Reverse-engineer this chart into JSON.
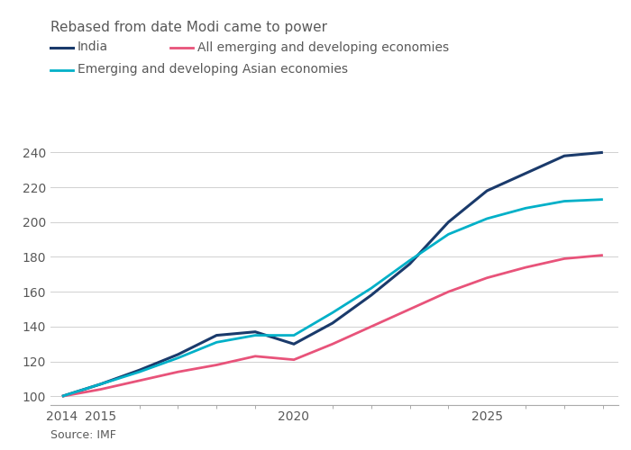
{
  "title": "Rebased from date Modi came to power",
  "source": "Source: IMF",
  "background_color": "#ffffff",
  "series": [
    {
      "label": "India",
      "color": "#1a3a6b",
      "linewidth": 2.2,
      "years": [
        2014,
        2015,
        2016,
        2017,
        2018,
        2019,
        2020,
        2021,
        2022,
        2023,
        2024,
        2025,
        2026,
        2027,
        2028
      ],
      "values": [
        100,
        107,
        115,
        124,
        135,
        137,
        130,
        142,
        158,
        176,
        200,
        218,
        228,
        238,
        240
      ]
    },
    {
      "label": "All emerging and developing economies",
      "color": "#e8537a",
      "linewidth": 2.0,
      "years": [
        2014,
        2015,
        2016,
        2017,
        2018,
        2019,
        2020,
        2021,
        2022,
        2023,
        2024,
        2025,
        2026,
        2027,
        2028
      ],
      "values": [
        100,
        104,
        109,
        114,
        118,
        123,
        121,
        130,
        140,
        150,
        160,
        168,
        174,
        179,
        181
      ]
    },
    {
      "label": "Emerging and developing Asian economies",
      "color": "#00b0c8",
      "linewidth": 2.0,
      "years": [
        2014,
        2015,
        2016,
        2017,
        2018,
        2019,
        2020,
        2021,
        2022,
        2023,
        2024,
        2025,
        2026,
        2027,
        2028
      ],
      "values": [
        100,
        107,
        114,
        122,
        131,
        135,
        135,
        148,
        162,
        178,
        193,
        202,
        208,
        212,
        213
      ]
    }
  ],
  "ylim": [
    95,
    250
  ],
  "yticks": [
    100,
    120,
    140,
    160,
    180,
    200,
    220,
    240
  ],
  "xlim": [
    2013.7,
    2028.4
  ],
  "xticks_major": [
    2014,
    2015,
    2020,
    2025
  ],
  "xticks_minor": [
    2014,
    2015,
    2016,
    2017,
    2018,
    2019,
    2020,
    2021,
    2022,
    2023,
    2024,
    2025,
    2026,
    2027,
    2028
  ],
  "tick_fontsize": 10,
  "title_fontsize": 11,
  "legend_fontsize": 10,
  "source_fontsize": 9,
  "text_color": "#595959",
  "grid_color": "#d0d0d0",
  "spine_color": "#aaaaaa"
}
